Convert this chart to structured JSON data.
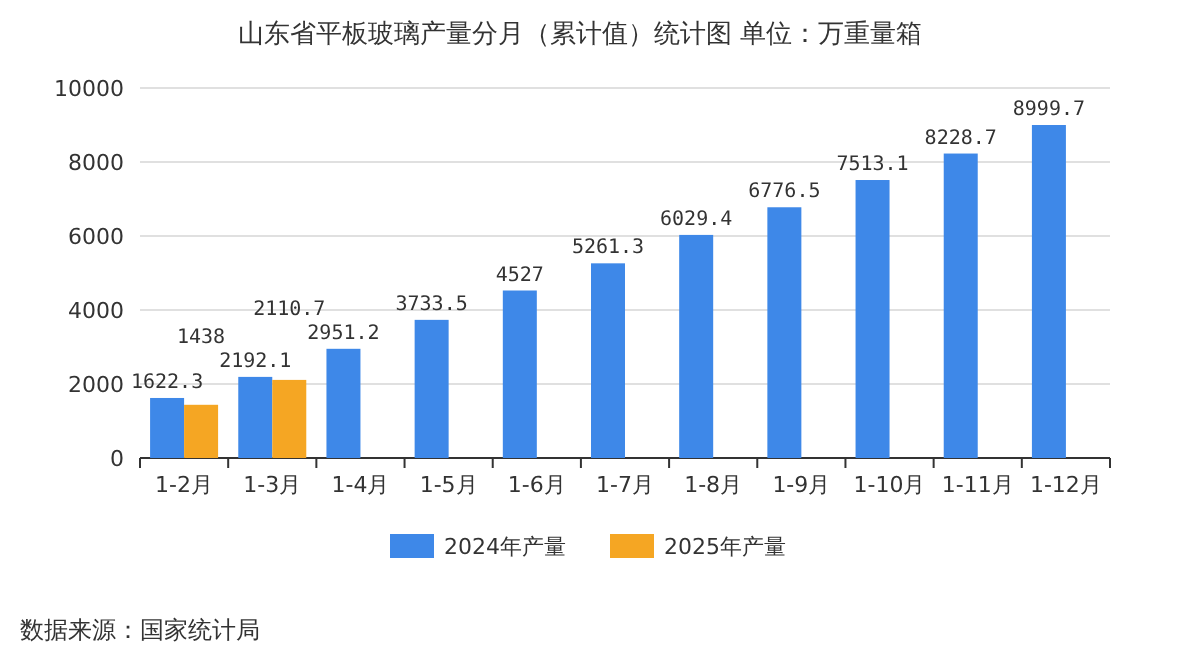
{
  "chart_data": {
    "type": "bar",
    "title": "山东省平板玻璃产量分月（累计值）统计图 单位：万重量箱",
    "categories": [
      "1-2月",
      "1-3月",
      "1-4月",
      "1-5月",
      "1-6月",
      "1-7月",
      "1-8月",
      "1-9月",
      "1-10月",
      "1-11月",
      "1-12月"
    ],
    "series": [
      {
        "name": "2024年产量",
        "color": "#3e88e8",
        "values": [
          1622.3,
          2192.1,
          2951.2,
          3733.5,
          4527,
          5261.3,
          6029.4,
          6776.5,
          7513.1,
          8228.7,
          8999.7
        ]
      },
      {
        "name": "2025年产量",
        "color": "#f5a623",
        "values": [
          1438,
          2110.7,
          null,
          null,
          null,
          null,
          null,
          null,
          null,
          null,
          null
        ]
      }
    ],
    "ylim": [
      0,
      10000
    ],
    "yticks": [
      0,
      2000,
      4000,
      6000,
      8000,
      10000
    ],
    "grid": "y",
    "legend": "bottom",
    "data_labels": true,
    "annotations": [
      "数据来源：国家统计局"
    ]
  }
}
